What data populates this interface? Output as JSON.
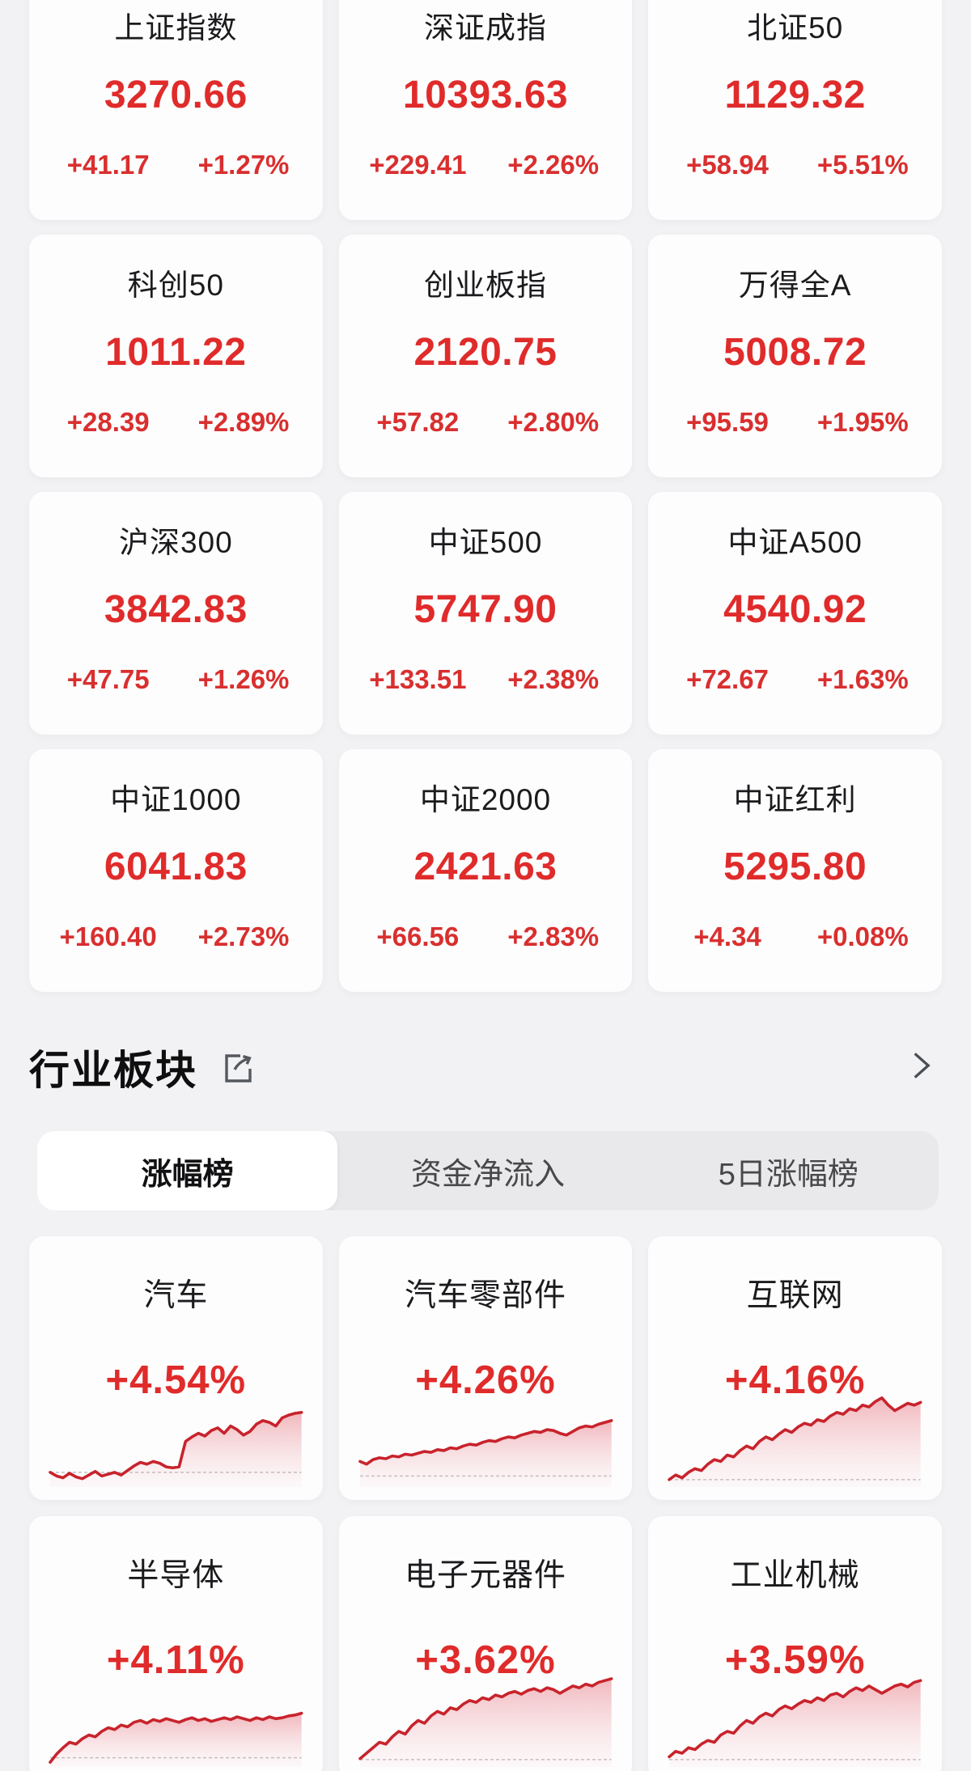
{
  "page": {
    "background": "#f2f2f4",
    "accent_red": "#e02b2b",
    "chart_line": "#c8232c"
  },
  "index_cards": [
    {
      "name": "上证指数",
      "value": "3270.66",
      "change": "+41.17",
      "change_pct": "+1.27%"
    },
    {
      "name": "深证成指",
      "value": "10393.63",
      "change": "+229.41",
      "change_pct": "+2.26%"
    },
    {
      "name": "北证50",
      "value": "1129.32",
      "change": "+58.94",
      "change_pct": "+5.51%"
    },
    {
      "name": "科创50",
      "value": "1011.22",
      "change": "+28.39",
      "change_pct": "+2.89%"
    },
    {
      "name": "创业板指",
      "value": "2120.75",
      "change": "+57.82",
      "change_pct": "+2.80%"
    },
    {
      "name": "万得全A",
      "value": "5008.72",
      "change": "+95.59",
      "change_pct": "+1.95%"
    },
    {
      "name": "沪深300",
      "value": "3842.83",
      "change": "+47.75",
      "change_pct": "+1.26%"
    },
    {
      "name": "中证500",
      "value": "5747.90",
      "change": "+133.51",
      "change_pct": "+2.38%"
    },
    {
      "name": "中证A500",
      "value": "4540.92",
      "change": "+72.67",
      "change_pct": "+1.63%"
    },
    {
      "name": "中证1000",
      "value": "6041.83",
      "change": "+160.40",
      "change_pct": "+2.73%"
    },
    {
      "name": "中证2000",
      "value": "2421.63",
      "change": "+66.56",
      "change_pct": "+2.83%"
    },
    {
      "name": "中证红利",
      "value": "5295.80",
      "change": "+4.34",
      "change_pct": "+0.08%"
    }
  ],
  "section": {
    "title": "行业板块",
    "share_icon": "share-icon",
    "chevron_icon": "chevron-right-icon"
  },
  "tabs": [
    {
      "label": "涨幅榜",
      "active": true
    },
    {
      "label": "资金净流入",
      "active": false
    },
    {
      "label": "5日涨幅榜",
      "active": false
    }
  ],
  "chart_data": [
    {
      "type": "area",
      "title": "汽车",
      "change_pct": "+4.54%",
      "legend": "none",
      "axes": "none",
      "baseline": 14,
      "values": [
        14,
        10,
        8,
        13,
        9,
        7,
        11,
        15,
        10,
        12,
        14,
        11,
        16,
        21,
        25,
        23,
        26,
        24,
        20,
        19,
        20,
        48,
        53,
        57,
        54,
        60,
        63,
        57,
        65,
        61,
        55,
        59,
        67,
        71,
        69,
        65,
        74,
        77,
        79,
        80
      ]
    },
    {
      "type": "area",
      "title": "汽车零部件",
      "change_pct": "+4.26%",
      "legend": "none",
      "axes": "none",
      "baseline": 10,
      "values": [
        26,
        23,
        28,
        30,
        29,
        32,
        31,
        34,
        33,
        35,
        37,
        36,
        39,
        38,
        41,
        40,
        43,
        45,
        44,
        47,
        49,
        48,
        51,
        53,
        52,
        55,
        57,
        59,
        58,
        61,
        60,
        57,
        55,
        59,
        63,
        65,
        64,
        67,
        69,
        71
      ]
    },
    {
      "type": "area",
      "title": "互联网",
      "change_pct": "+4.16%",
      "legend": "none",
      "axes": "none",
      "baseline": 6,
      "values": [
        6,
        11,
        8,
        14,
        18,
        16,
        23,
        28,
        26,
        33,
        31,
        38,
        43,
        40,
        48,
        53,
        50,
        56,
        61,
        58,
        64,
        68,
        66,
        72,
        70,
        76,
        80,
        78,
        84,
        82,
        88,
        86,
        92,
        96,
        88,
        82,
        86,
        90,
        88,
        91
      ]
    },
    {
      "type": "area",
      "title": "半导体",
      "change_pct": "+4.11%",
      "legend": "none",
      "axes": "none",
      "baseline": 8,
      "values": [
        3,
        12,
        19,
        25,
        23,
        29,
        33,
        31,
        37,
        41,
        39,
        44,
        42,
        47,
        49,
        46,
        50,
        48,
        51,
        49,
        47,
        50,
        52,
        49,
        51,
        48,
        50,
        52,
        50,
        53,
        51,
        49,
        52,
        50,
        53,
        51,
        52,
        54,
        55,
        57
      ]
    },
    {
      "type": "area",
      "title": "电子元器件",
      "change_pct": "+3.62%",
      "legend": "none",
      "axes": "none",
      "baseline": 6,
      "values": [
        7,
        13,
        19,
        25,
        23,
        31,
        37,
        34,
        43,
        49,
        46,
        54,
        59,
        56,
        63,
        61,
        67,
        71,
        69,
        74,
        72,
        77,
        75,
        79,
        81,
        78,
        82,
        84,
        81,
        85,
        83,
        79,
        83,
        87,
        85,
        89,
        87,
        91,
        93,
        95
      ]
    },
    {
      "type": "area",
      "title": "工业机械",
      "change_pct": "+3.59%",
      "legend": "none",
      "axes": "none",
      "baseline": 6,
      "values": [
        9,
        15,
        13,
        19,
        17,
        23,
        27,
        25,
        33,
        37,
        35,
        43,
        49,
        46,
        53,
        57,
        54,
        61,
        65,
        62,
        67,
        71,
        69,
        74,
        71,
        77,
        79,
        75,
        81,
        85,
        82,
        87,
        83,
        79,
        83,
        87,
        89,
        86,
        91,
        93
      ]
    }
  ]
}
